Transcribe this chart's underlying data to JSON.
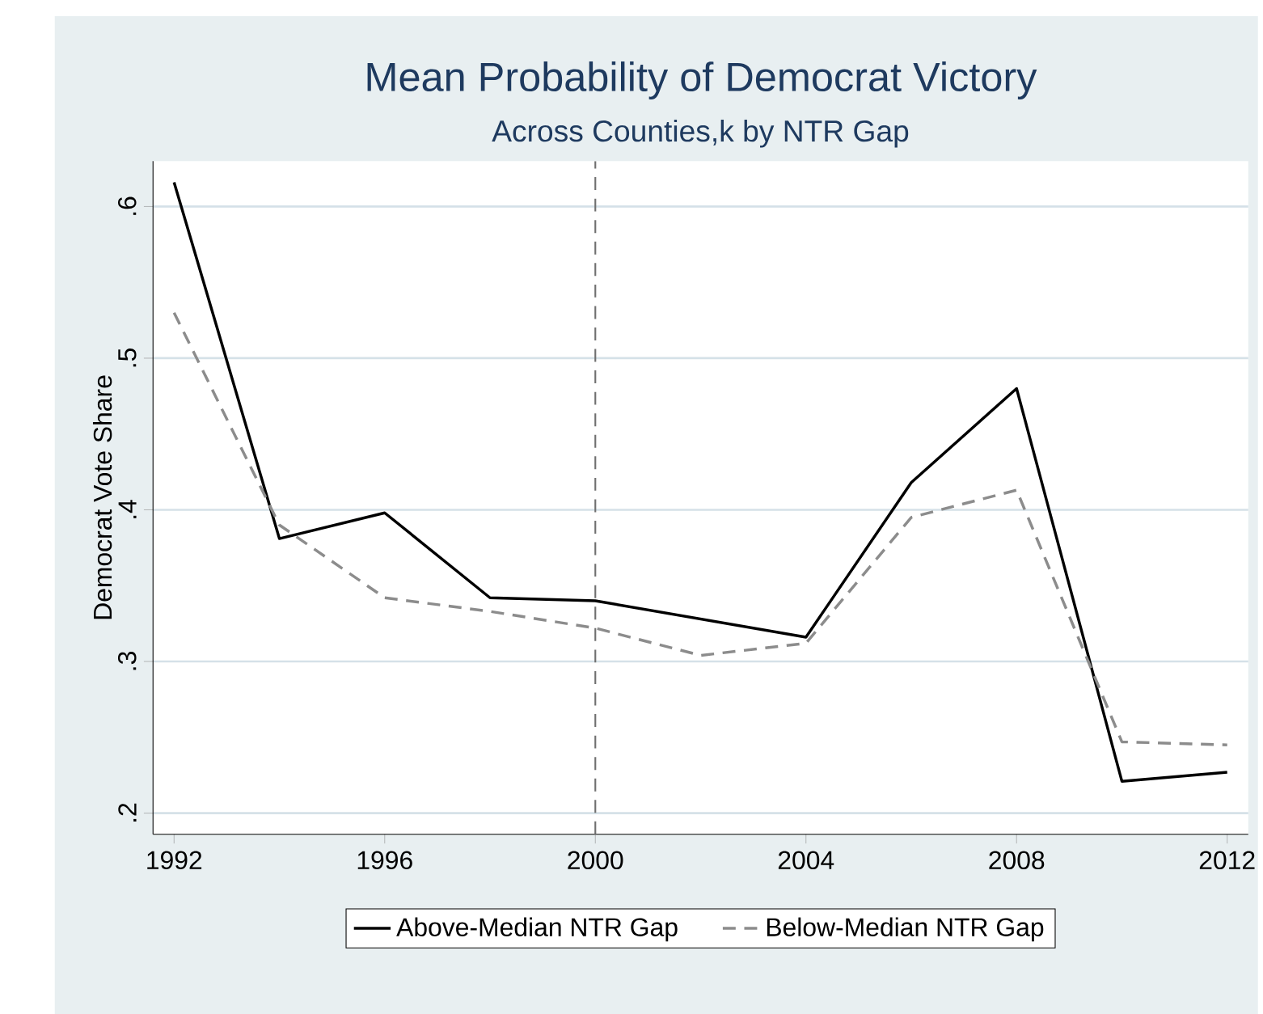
{
  "chart_data": {
    "type": "line",
    "title": "Mean Probability of Democrat Victory",
    "subtitle": "Across Counties,k by NTR Gap",
    "ylabel": "Democrat Vote Share",
    "x": [
      1992,
      1994,
      1996,
      1998,
      2000,
      2002,
      2004,
      2006,
      2008,
      2010,
      2012
    ],
    "series": [
      {
        "name": "Above-Median NTR Gap",
        "color": "#000000",
        "line_style": "solid",
        "values": [
          0.616,
          0.381,
          0.398,
          0.342,
          0.34,
          0.328,
          0.316,
          0.418,
          0.48,
          0.221,
          0.227
        ]
      },
      {
        "name": "Below-Median NTR Gap",
        "color": "#8c8c8c",
        "line_style": "dashed",
        "values": [
          0.53,
          0.39,
          0.342,
          0.333,
          0.322,
          0.304,
          0.312,
          0.395,
          0.413,
          0.247,
          0.245
        ]
      }
    ],
    "xlim": [
      1991.6,
      2012.4
    ],
    "ylim": [
      0.186,
      0.63
    ],
    "xticks": [
      1992,
      1996,
      2000,
      2004,
      2008,
      2012
    ],
    "yticks": [
      {
        "value": 0.2,
        "label": ".2"
      },
      {
        "value": 0.3,
        "label": ".3"
      },
      {
        "value": 0.4,
        "label": ".4"
      },
      {
        "value": 0.5,
        "label": ".5"
      },
      {
        "value": 0.6,
        "label": ".6"
      }
    ],
    "ref_lines": [
      {
        "axis": "x",
        "value": 2000,
        "color": "#707070",
        "line_style": "dashed"
      }
    ],
    "grid": "y",
    "legend": "bottom",
    "marker": "none"
  }
}
